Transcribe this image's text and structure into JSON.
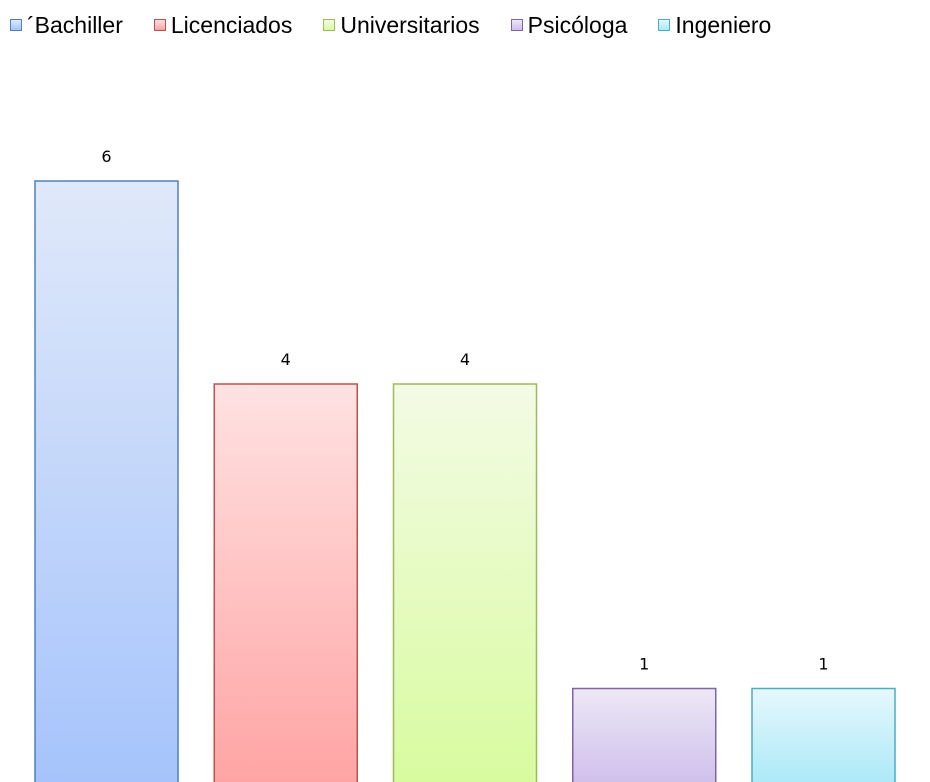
{
  "chart_data": {
    "type": "bar",
    "categories": [
      "´Bachiller",
      "Licenciados",
      "Universitarios",
      "Psicóloga",
      "Ingeniero"
    ],
    "values": [
      6,
      4,
      4,
      1,
      1
    ],
    "data_labels": [
      "6",
      "4",
      "4",
      "1",
      "1"
    ],
    "legend": {
      "position": "top",
      "entries": [
        "´Bachiller",
        "Licenciados",
        "Universitarios",
        "Psicóloga",
        "Ingeniero"
      ]
    },
    "colors": [
      {
        "top": "#e0e9fa",
        "bottom": "#a5c3fb",
        "border": "#4f81bd"
      },
      {
        "top": "#ffe2e2",
        "bottom": "#ffa3a3",
        "border": "#c0504d"
      },
      {
        "top": "#f3fbe5",
        "bottom": "#d8fb9e",
        "border": "#9bbb59"
      },
      {
        "top": "#ede8f6",
        "bottom": "#cdbdeb",
        "border": "#8064a2"
      },
      {
        "top": "#e6f8fc",
        "bottom": "#a8e8f8",
        "border": "#4bacc6"
      }
    ],
    "grid": false,
    "axes_visible": false,
    "title": "",
    "xlabel": "",
    "ylabel": ""
  }
}
